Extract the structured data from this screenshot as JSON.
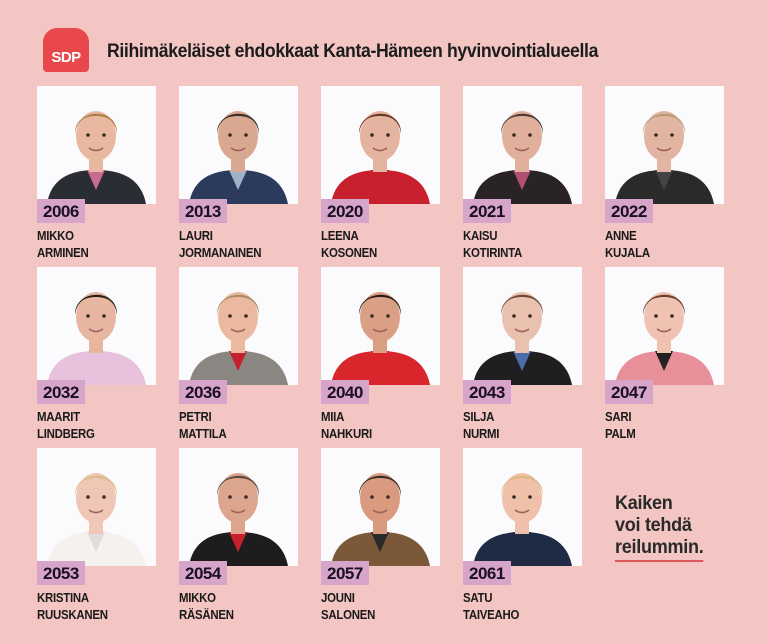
{
  "header": {
    "logo_text": "SDP",
    "title": "Riihimäkeläiset ehdokkaat Kanta-Hämeen hyvinvointialueella"
  },
  "colors": {
    "background": "#f3c6c3",
    "logo": "#e8474b",
    "badge": "#d7a5c9",
    "underline": "#e0575d"
  },
  "candidates": [
    {
      "number": "2006",
      "first": "Mikko",
      "last": "Arminen",
      "bg": "#fbfbfd",
      "hair": "#b07a45",
      "skin": "#e8b9a0",
      "cloth": "#2a2d33",
      "accent": "#c96a8f"
    },
    {
      "number": "2013",
      "first": "Lauri",
      "last": "Jormanainen",
      "bg": "#fbfbfd",
      "hair": "#3a2f28",
      "skin": "#d9a890",
      "cloth": "#2c3b5c",
      "accent": "#9fb3c8"
    },
    {
      "number": "2020",
      "first": "Leena",
      "last": "Kosonen",
      "bg": "#fbfbfd",
      "hair": "#6b3a25",
      "skin": "#e5b4a0",
      "cloth": "#c8202c",
      "accent": "#c8202c"
    },
    {
      "number": "2021",
      "first": "Kaisu",
      "last": "Kotirinta",
      "bg": "#fbfbfd",
      "hair": "#4a3b33",
      "skin": "#e0b09c",
      "cloth": "#2a2326",
      "accent": "#b05070"
    },
    {
      "number": "2022",
      "first": "Anne",
      "last": "Kujala",
      "bg": "#fbfbfd",
      "hair": "#b89a70",
      "skin": "#e2b5a2",
      "cloth": "#2a2a2a",
      "accent": "#444444"
    },
    {
      "number": "2032",
      "first": "Maarit",
      "last": "Lindberg",
      "bg": "#fbfbfd",
      "hair": "#2a1c18",
      "skin": "#e6b6a0",
      "cloth": "#e8c2dc",
      "accent": "#e8c2dc"
    },
    {
      "number": "2036",
      "first": "Petri",
      "last": "Mattila",
      "bg": "#fbfbfd",
      "hair": "#a88a68",
      "skin": "#ebb9a0",
      "cloth": "#8a8682",
      "accent": "#c42030"
    },
    {
      "number": "2040",
      "first": "Miia",
      "last": "Nahkuri",
      "bg": "#fbfbfd",
      "hair": "#2a1d18",
      "skin": "#d9a085",
      "cloth": "#d8262c",
      "accent": "#d8262c"
    },
    {
      "number": "2043",
      "first": "Silja",
      "last": "Nurmi",
      "bg": "#fbfbfd",
      "hair": "#6a4a38",
      "skin": "#eac0ae",
      "cloth": "#1f1f22",
      "accent": "#4a6fa8"
    },
    {
      "number": "2047",
      "first": "Sari",
      "last": "Palm",
      "bg": "#fbfbfd",
      "hair": "#6a4030",
      "skin": "#efc2b2",
      "cloth": "#e8909a",
      "accent": "#222222"
    },
    {
      "number": "2053",
      "first": "Kristina",
      "last": "Ruuskanen",
      "bg": "#fbfbfd",
      "hair": "#d7bb88",
      "skin": "#f0c6b4",
      "cloth": "#f4f1ee",
      "accent": "#dddddd"
    },
    {
      "number": "2054",
      "first": "Mikko",
      "last": "Räsänen",
      "bg": "#fbfbfd",
      "hair": "#5a4a40",
      "skin": "#dca58e",
      "cloth": "#1d1d1f",
      "accent": "#c8202c"
    },
    {
      "number": "2057",
      "first": "Jouni",
      "last": "Salonen",
      "bg": "#fbfbfd",
      "hair": "#3a2e28",
      "skin": "#d99a80",
      "cloth": "#7a5838",
      "accent": "#2a2a2a"
    },
    {
      "number": "2061",
      "first": "Satu",
      "last": "Taiveaho",
      "bg": "#fbfbfd",
      "hair": "#d9b880",
      "skin": "#efc0aa",
      "cloth": "#1f2a44",
      "accent": "#1f2a44"
    }
  ],
  "slogan": {
    "line1": "Kaiken",
    "line2": "voi tehdä",
    "line3": "reilummin."
  }
}
